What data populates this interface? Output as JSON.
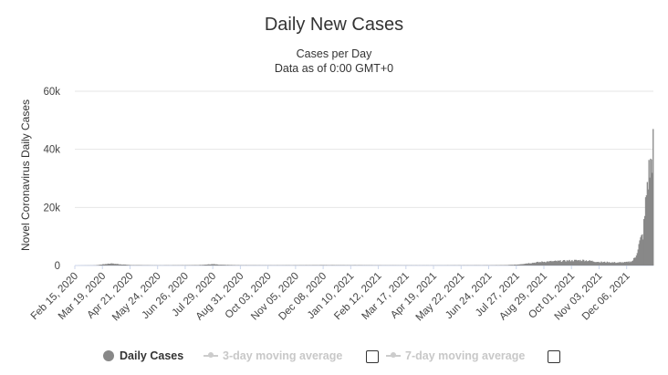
{
  "chart_data": {
    "type": "bar",
    "title": "Daily New Cases",
    "subtitle_lines": [
      "Cases per Day",
      "Data as of 0:00 GMT+0"
    ],
    "ylabel": "Novel Coronavirus Daily Cases",
    "xlabel": "",
    "ylim": [
      0,
      60000
    ],
    "y_ticks": [
      0,
      20000,
      40000,
      60000
    ],
    "y_tick_labels": [
      "0",
      "20k",
      "40k",
      "60k"
    ],
    "grid": true,
    "x_start": "2020-02-15",
    "x_end": "2022-01-07",
    "x_tick_labels": [
      "Feb 15, 2020",
      "Mar 19, 2020",
      "Apr 21, 2020",
      "May 24, 2020",
      "Jun 26, 2020",
      "Jul 29, 2020",
      "Aug 31, 2020",
      "Oct 03, 2020",
      "Nov 05, 2020",
      "Dec 08, 2020",
      "Jan 10, 2021",
      "Feb 12, 2021",
      "Mar 17, 2021",
      "Apr 19, 2021",
      "May 22, 2021",
      "Jun 24, 2021",
      "Jul 27, 2021",
      "Aug 29, 2021",
      "Oct 01, 2021",
      "Nov 03, 2021",
      "Dec 06, 2021"
    ],
    "series": [
      {
        "name": "Daily Cases",
        "color": "#888888",
        "points": [
          [
            "2020-02-15",
            0
          ],
          [
            "2020-03-10",
            50
          ],
          [
            "2020-03-19",
            400
          ],
          [
            "2020-03-28",
            700
          ],
          [
            "2020-04-05",
            500
          ],
          [
            "2020-04-21",
            150
          ],
          [
            "2020-05-24",
            50
          ],
          [
            "2020-07-10",
            150
          ],
          [
            "2020-07-29",
            450
          ],
          [
            "2020-08-05",
            250
          ],
          [
            "2020-08-31",
            100
          ],
          [
            "2020-10-03",
            80
          ],
          [
            "2020-11-05",
            100
          ],
          [
            "2020-12-08",
            150
          ],
          [
            "2021-01-10",
            120
          ],
          [
            "2021-02-12",
            80
          ],
          [
            "2021-03-17",
            60
          ],
          [
            "2021-04-19",
            50
          ],
          [
            "2021-05-22",
            80
          ],
          [
            "2021-06-24",
            80
          ],
          [
            "2021-07-15",
            150
          ],
          [
            "2021-07-27",
            300
          ],
          [
            "2021-08-10",
            800
          ],
          [
            "2021-08-29",
            1300
          ],
          [
            "2021-09-15",
            1500
          ],
          [
            "2021-10-01",
            1700
          ],
          [
            "2021-10-15",
            1800
          ],
          [
            "2021-10-25",
            1500
          ],
          [
            "2021-11-03",
            1200
          ],
          [
            "2021-11-15",
            1100
          ],
          [
            "2021-11-25",
            1000
          ],
          [
            "2021-12-06",
            1100
          ],
          [
            "2021-12-12",
            1500
          ],
          [
            "2021-12-16",
            3000
          ],
          [
            "2021-12-19",
            6000
          ],
          [
            "2021-12-21",
            8000
          ],
          [
            "2021-12-23",
            9500
          ],
          [
            "2021-12-25",
            10500
          ],
          [
            "2021-12-26",
            14000
          ],
          [
            "2021-12-27",
            17000
          ],
          [
            "2021-12-28",
            21000
          ],
          [
            "2021-12-29",
            25000
          ],
          [
            "2021-12-30",
            28000
          ],
          [
            "2021-12-31",
            30000
          ],
          [
            "2022-01-01",
            32000
          ],
          [
            "2022-01-02",
            33000
          ],
          [
            "2022-01-03",
            34000
          ],
          [
            "2022-01-04",
            36000
          ],
          [
            "2022-01-05",
            38000
          ],
          [
            "2022-01-06",
            47000
          ]
        ]
      }
    ],
    "legend_position": "bottom-center",
    "legend": [
      {
        "label": "Daily Cases",
        "active": true
      },
      {
        "label": "3-day moving average",
        "active": false
      },
      {
        "label": "7-day moving average",
        "active": false
      }
    ]
  }
}
